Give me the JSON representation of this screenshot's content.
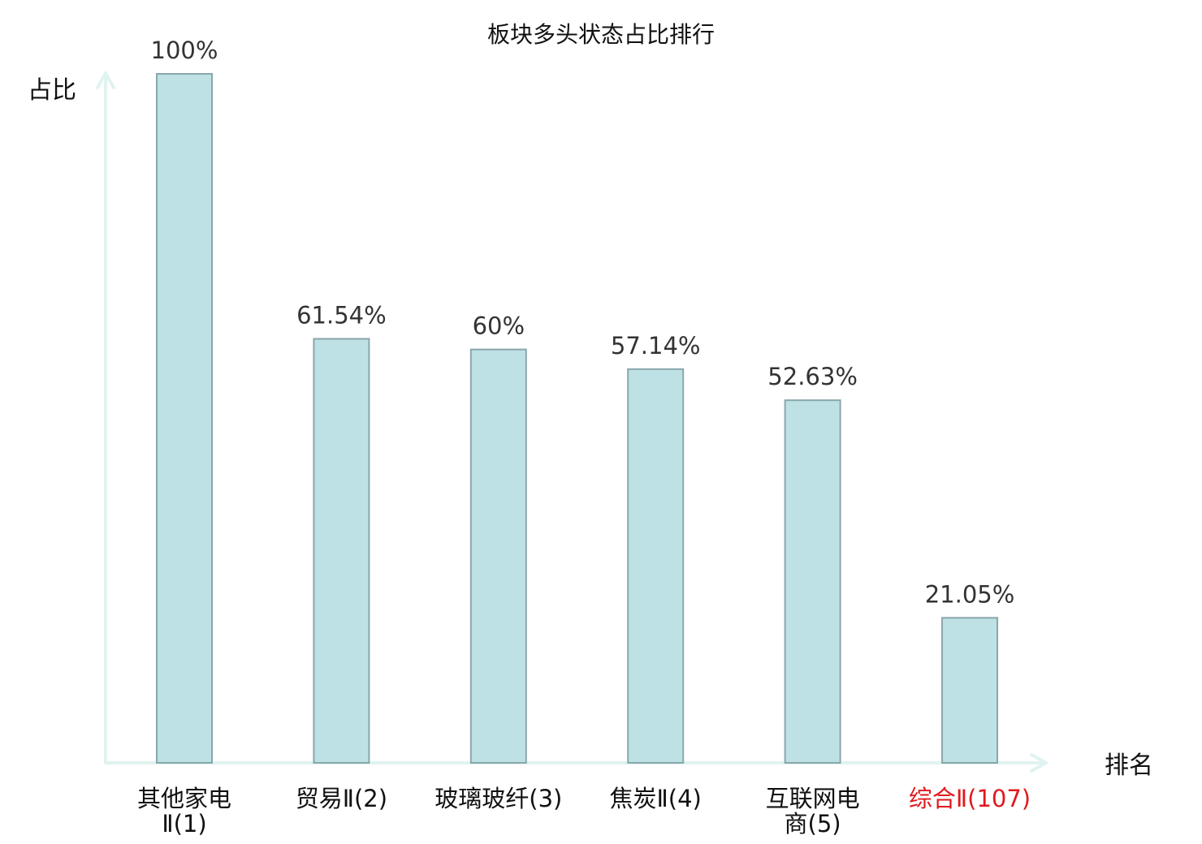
{
  "chart_data": {
    "type": "bar",
    "title": "板块多头状态占比排行",
    "xlabel": "排名",
    "ylabel": "占比",
    "ylim": [
      0,
      100
    ],
    "grid": false,
    "legend": "none",
    "categories": [
      [
        "其他家电",
        "Ⅱ(1)"
      ],
      [
        "贸易Ⅱ(2)"
      ],
      [
        "玻璃玻纤(3)"
      ],
      [
        "焦炭Ⅱ(4)"
      ],
      [
        "互联网电",
        "商(5)"
      ],
      [
        "综合Ⅱ(107)"
      ]
    ],
    "values": [
      100,
      61.54,
      60,
      57.14,
      52.63,
      21.05
    ],
    "value_labels": [
      "100%",
      "61.54%",
      "60%",
      "57.14%",
      "52.63%",
      "21.05%"
    ],
    "highlight_index": 5,
    "colors": {
      "bar_fill": "#bde1e4",
      "bar_stroke": "#8aa7ab",
      "axis": "#e0f3f1",
      "highlight_text": "#e0191e",
      "text": "#111111"
    }
  }
}
